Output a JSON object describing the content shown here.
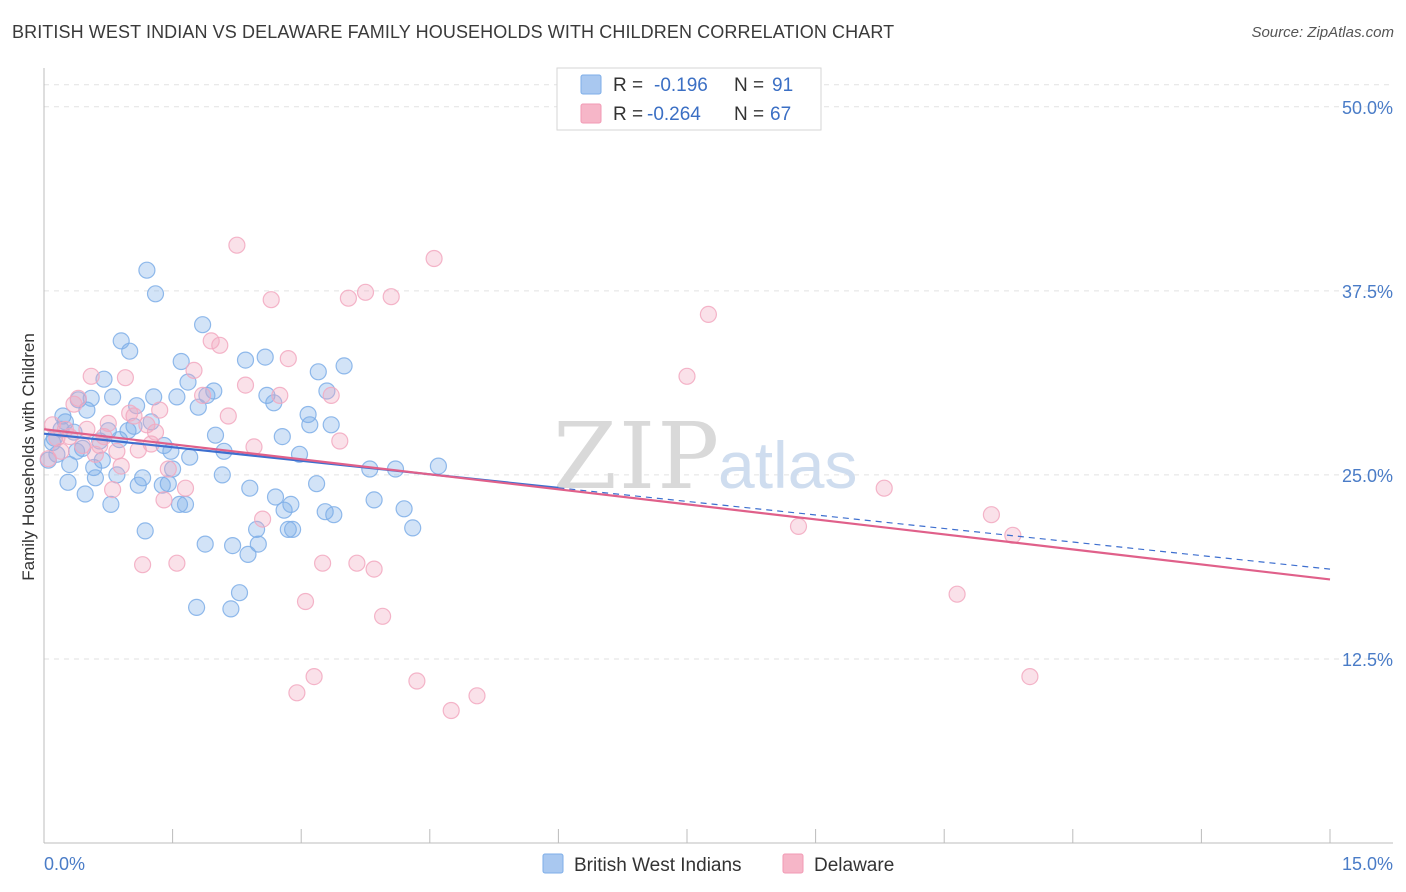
{
  "title": "BRITISH WEST INDIAN VS DELAWARE FAMILY HOUSEHOLDS WITH CHILDREN CORRELATION CHART",
  "source": "Source: ZipAtlas.com",
  "watermark": {
    "part1": "ZIP",
    "part2": "atlas"
  },
  "legend_box": {
    "rows": [
      {
        "r_label": "R =",
        "r_value": "-0.196",
        "n_label": "N =",
        "n_value": "91",
        "color": "#a9c8f0"
      },
      {
        "r_label": "R =",
        "r_value": "-0.264",
        "n_label": "N =",
        "n_value": "67",
        "color": "#f6b6c8"
      }
    ]
  },
  "chart_data": {
    "type": "scatter",
    "title": "BRITISH WEST INDIAN VS DELAWARE FAMILY HOUSEHOLDS WITH CHILDREN CORRELATION CHART",
    "xlabel": "",
    "ylabel": "Family Households with Children",
    "xlim": [
      0,
      15
    ],
    "ylim": [
      0,
      52.5
    ],
    "x_tick_labels": [
      "0.0%",
      "15.0%"
    ],
    "y_ticks": [
      12.5,
      25.0,
      37.5,
      50.0
    ],
    "y_tick_labels": [
      "12.5%",
      "25.0%",
      "37.5%",
      "50.0%"
    ],
    "grid": true,
    "legend_position": "bottom-center",
    "series": [
      {
        "name": "British West Indians",
        "color": "#7eaee8",
        "line_color": "#3e6fcf",
        "r": -0.196,
        "n": 91,
        "trend": {
          "x0": 0,
          "y0": 27.8,
          "x1": 15,
          "y1": 18.6,
          "solid_until": 6.0
        },
        "points": [
          [
            0.1,
            27.2
          ],
          [
            0.2,
            28.1
          ],
          [
            0.15,
            26.4
          ],
          [
            0.3,
            25.7
          ],
          [
            0.25,
            28.6
          ],
          [
            0.35,
            27.9
          ],
          [
            0.4,
            30.1
          ],
          [
            0.5,
            29.4
          ],
          [
            0.45,
            26.8
          ],
          [
            0.6,
            24.8
          ],
          [
            0.55,
            30.2
          ],
          [
            0.7,
            31.5
          ],
          [
            0.65,
            27.3
          ],
          [
            0.8,
            30.3
          ],
          [
            0.75,
            28.0
          ],
          [
            0.9,
            34.1
          ],
          [
            0.85,
            25.0
          ],
          [
            1.0,
            33.4
          ],
          [
            1.05,
            28.3
          ],
          [
            1.1,
            24.3
          ],
          [
            1.2,
            38.9
          ],
          [
            1.25,
            28.6
          ],
          [
            1.3,
            37.3
          ],
          [
            1.15,
            24.8
          ],
          [
            1.4,
            27.0
          ],
          [
            1.45,
            24.4
          ],
          [
            1.5,
            25.4
          ],
          [
            1.55,
            30.3
          ],
          [
            1.6,
            32.7
          ],
          [
            1.65,
            23.0
          ],
          [
            1.7,
            26.2
          ],
          [
            1.8,
            29.6
          ],
          [
            1.85,
            35.2
          ],
          [
            1.9,
            30.4
          ],
          [
            2.0,
            27.7
          ],
          [
            2.1,
            26.6
          ],
          [
            2.2,
            20.2
          ],
          [
            2.35,
            32.8
          ],
          [
            2.4,
            24.1
          ],
          [
            2.5,
            20.3
          ],
          [
            2.6,
            30.4
          ],
          [
            2.7,
            23.5
          ],
          [
            2.8,
            22.6
          ],
          [
            2.85,
            21.3
          ],
          [
            2.9,
            21.3
          ],
          [
            3.1,
            28.4
          ],
          [
            3.2,
            32.0
          ],
          [
            3.3,
            30.7
          ],
          [
            3.35,
            28.4
          ],
          [
            3.5,
            32.4
          ],
          [
            3.8,
            25.4
          ],
          [
            3.85,
            23.3
          ],
          [
            4.1,
            25.4
          ],
          [
            4.2,
            22.7
          ],
          [
            4.3,
            21.4
          ],
          [
            4.6,
            25.6
          ],
          [
            0.05,
            26.0
          ],
          [
            0.12,
            27.5
          ],
          [
            0.22,
            29.0
          ],
          [
            0.28,
            24.5
          ],
          [
            0.38,
            26.6
          ],
          [
            0.48,
            23.7
          ],
          [
            0.58,
            25.5
          ],
          [
            0.68,
            26.0
          ],
          [
            0.78,
            23.0
          ],
          [
            0.88,
            27.4
          ],
          [
            0.98,
            28.0
          ],
          [
            1.08,
            29.7
          ],
          [
            1.18,
            21.2
          ],
          [
            1.28,
            30.3
          ],
          [
            1.38,
            24.3
          ],
          [
            1.48,
            26.6
          ],
          [
            1.58,
            23.0
          ],
          [
            1.68,
            31.3
          ],
          [
            1.78,
            16.0
          ],
          [
            1.88,
            20.3
          ],
          [
            1.98,
            30.7
          ],
          [
            2.08,
            25.0
          ],
          [
            2.18,
            15.9
          ],
          [
            2.28,
            17.0
          ],
          [
            2.38,
            19.6
          ],
          [
            2.48,
            21.3
          ],
          [
            2.58,
            33.0
          ],
          [
            2.68,
            29.9
          ],
          [
            2.78,
            27.6
          ],
          [
            2.88,
            23.0
          ],
          [
            2.98,
            26.4
          ],
          [
            3.08,
            29.1
          ],
          [
            3.18,
            24.4
          ],
          [
            3.28,
            22.5
          ],
          [
            3.38,
            22.3
          ]
        ]
      },
      {
        "name": "Delaware",
        "color": "#f2a8bf",
        "line_color": "#e0608a",
        "r": -0.264,
        "n": 67,
        "trend": {
          "x0": 0,
          "y0": 28.1,
          "x1": 15,
          "y1": 17.9,
          "solid_until": 15.0
        },
        "points": [
          [
            0.05,
            26.1
          ],
          [
            0.15,
            27.5
          ],
          [
            0.25,
            28.1
          ],
          [
            0.35,
            29.8
          ],
          [
            0.45,
            27.0
          ],
          [
            0.55,
            31.7
          ],
          [
            0.65,
            27.0
          ],
          [
            0.75,
            28.5
          ],
          [
            0.85,
            26.6
          ],
          [
            0.95,
            31.6
          ],
          [
            1.05,
            29.0
          ],
          [
            1.15,
            18.9
          ],
          [
            1.25,
            27.1
          ],
          [
            1.35,
            29.4
          ],
          [
            1.45,
            25.4
          ],
          [
            1.55,
            19.0
          ],
          [
            1.65,
            24.1
          ],
          [
            1.75,
            32.1
          ],
          [
            1.85,
            30.4
          ],
          [
            1.95,
            34.1
          ],
          [
            2.05,
            33.8
          ],
          [
            2.15,
            29.0
          ],
          [
            2.25,
            40.6
          ],
          [
            2.35,
            31.1
          ],
          [
            2.45,
            26.9
          ],
          [
            2.55,
            22.0
          ],
          [
            2.65,
            36.9
          ],
          [
            2.75,
            30.4
          ],
          [
            2.85,
            32.9
          ],
          [
            2.95,
            10.2
          ],
          [
            3.05,
            16.4
          ],
          [
            3.15,
            11.3
          ],
          [
            3.25,
            19.0
          ],
          [
            3.35,
            30.4
          ],
          [
            3.45,
            27.3
          ],
          [
            3.55,
            37.0
          ],
          [
            3.65,
            19.0
          ],
          [
            3.75,
            37.4
          ],
          [
            3.85,
            18.6
          ],
          [
            3.95,
            15.4
          ],
          [
            4.05,
            37.1
          ],
          [
            4.35,
            11.0
          ],
          [
            4.55,
            39.7
          ],
          [
            4.75,
            9.0
          ],
          [
            5.05,
            10.0
          ],
          [
            7.5,
            31.7
          ],
          [
            7.75,
            35.9
          ],
          [
            8.8,
            21.5
          ],
          [
            9.8,
            24.1
          ],
          [
            10.65,
            16.9
          ],
          [
            11.05,
            22.3
          ],
          [
            11.3,
            20.9
          ],
          [
            11.5,
            11.3
          ],
          [
            0.1,
            28.4
          ],
          [
            0.2,
            26.6
          ],
          [
            0.3,
            27.6
          ],
          [
            0.4,
            30.2
          ],
          [
            0.5,
            28.1
          ],
          [
            0.6,
            26.4
          ],
          [
            0.7,
            27.6
          ],
          [
            0.8,
            24.0
          ],
          [
            0.9,
            25.6
          ],
          [
            1.0,
            29.2
          ],
          [
            1.1,
            26.7
          ],
          [
            1.2,
            28.4
          ],
          [
            1.3,
            27.9
          ],
          [
            1.4,
            23.3
          ]
        ]
      }
    ]
  },
  "legend": {
    "items": [
      {
        "label": "British West Indians",
        "color": "#a9c8f0"
      },
      {
        "label": "Delaware",
        "color": "#f6b6c8"
      }
    ]
  }
}
